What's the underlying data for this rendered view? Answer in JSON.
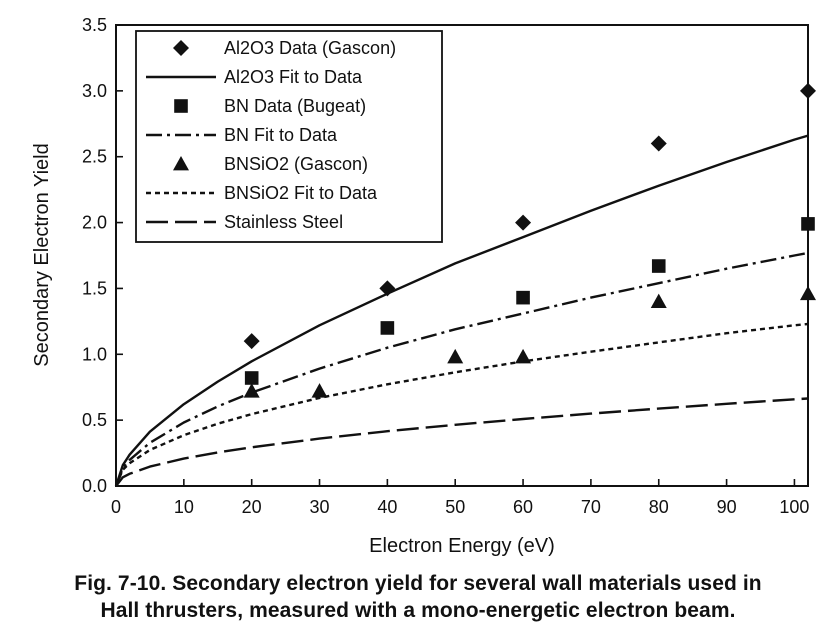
{
  "chart_data": {
    "type": "scatter",
    "xlabel": "Electron Energy (eV)",
    "ylabel": "Secondary Electron Yield",
    "xlim": [
      0,
      102
    ],
    "ylim": [
      0,
      3.5
    ],
    "x_ticks": [
      0,
      10,
      20,
      30,
      40,
      50,
      60,
      70,
      80,
      90,
      100
    ],
    "y_ticks": [
      0.0,
      0.5,
      1.0,
      1.5,
      2.0,
      2.5,
      3.0,
      3.5
    ],
    "x_tick_labels": [
      "0",
      "10",
      "20",
      "30",
      "40",
      "50",
      "60",
      "70",
      "80",
      "90",
      "100"
    ],
    "y_tick_labels": [
      "0.0",
      "0.5",
      "1.0",
      "1.5",
      "2.0",
      "2.5",
      "3.0",
      "3.5"
    ],
    "grid": false,
    "legend_position": "top-left",
    "series": [
      {
        "name": "Al2O3 Data (Gascon)",
        "kind": "points",
        "marker": "diamond",
        "x": [
          20,
          40,
          60,
          80,
          102
        ],
        "y": [
          1.1,
          1.5,
          2.0,
          2.6,
          3.0
        ]
      },
      {
        "name": "Al2O3 Fit to Data",
        "kind": "line",
        "dash": "solid",
        "x": [
          0,
          1,
          2,
          5,
          10,
          15,
          20,
          30,
          40,
          50,
          60,
          70,
          80,
          90,
          100,
          102
        ],
        "y": [
          0,
          0.158,
          0.238,
          0.412,
          0.621,
          0.793,
          0.947,
          1.22,
          1.46,
          1.69,
          1.89,
          2.09,
          2.28,
          2.46,
          2.63,
          2.66
        ]
      },
      {
        "name": "BN Data (Bugeat)",
        "kind": "points",
        "marker": "square",
        "x": [
          20,
          40,
          60,
          80,
          102
        ],
        "y": [
          0.82,
          1.2,
          1.43,
          1.67,
          1.99
        ]
      },
      {
        "name": "BN Fit to Data",
        "kind": "line",
        "dash": "dashdot",
        "x": [
          0,
          1,
          2,
          5,
          10,
          15,
          20,
          30,
          40,
          50,
          60,
          70,
          80,
          90,
          100,
          102
        ],
        "y": [
          0,
          0.135,
          0.198,
          0.328,
          0.482,
          0.604,
          0.709,
          0.891,
          1.05,
          1.19,
          1.31,
          1.43,
          1.54,
          1.65,
          1.75,
          1.77
        ]
      },
      {
        "name": "BNSiO2 (Gascon)",
        "kind": "points",
        "marker": "triangle",
        "x": [
          20,
          30,
          50,
          60,
          80,
          102
        ],
        "y": [
          0.72,
          0.72,
          0.98,
          0.98,
          1.4,
          1.46
        ]
      },
      {
        "name": "BNSiO2 Fit to Data",
        "kind": "line",
        "dash": "dotted",
        "x": [
          0,
          1,
          2,
          5,
          10,
          15,
          20,
          30,
          40,
          50,
          60,
          70,
          80,
          90,
          100,
          102
        ],
        "y": [
          0,
          0.123,
          0.173,
          0.273,
          0.386,
          0.473,
          0.546,
          0.669,
          0.772,
          0.863,
          0.946,
          1.02,
          1.09,
          1.16,
          1.22,
          1.23
        ]
      },
      {
        "name": "Stainless Steel",
        "kind": "line",
        "dash": "longdash",
        "x": [
          0,
          1,
          2,
          5,
          10,
          15,
          20,
          30,
          40,
          50,
          60,
          70,
          80,
          90,
          100,
          102
        ],
        "y": [
          0,
          0.066,
          0.093,
          0.147,
          0.208,
          0.255,
          0.294,
          0.36,
          0.416,
          0.465,
          0.509,
          0.55,
          0.588,
          0.624,
          0.658,
          0.664
        ]
      }
    ]
  },
  "caption": {
    "line1": "Fig. 7-10. Secondary electron yield for several wall materials used in",
    "line2": "Hall thrusters, measured with a mono-energetic electron beam."
  },
  "colors": {
    "ink": "#111111",
    "background": "#ffffff"
  }
}
